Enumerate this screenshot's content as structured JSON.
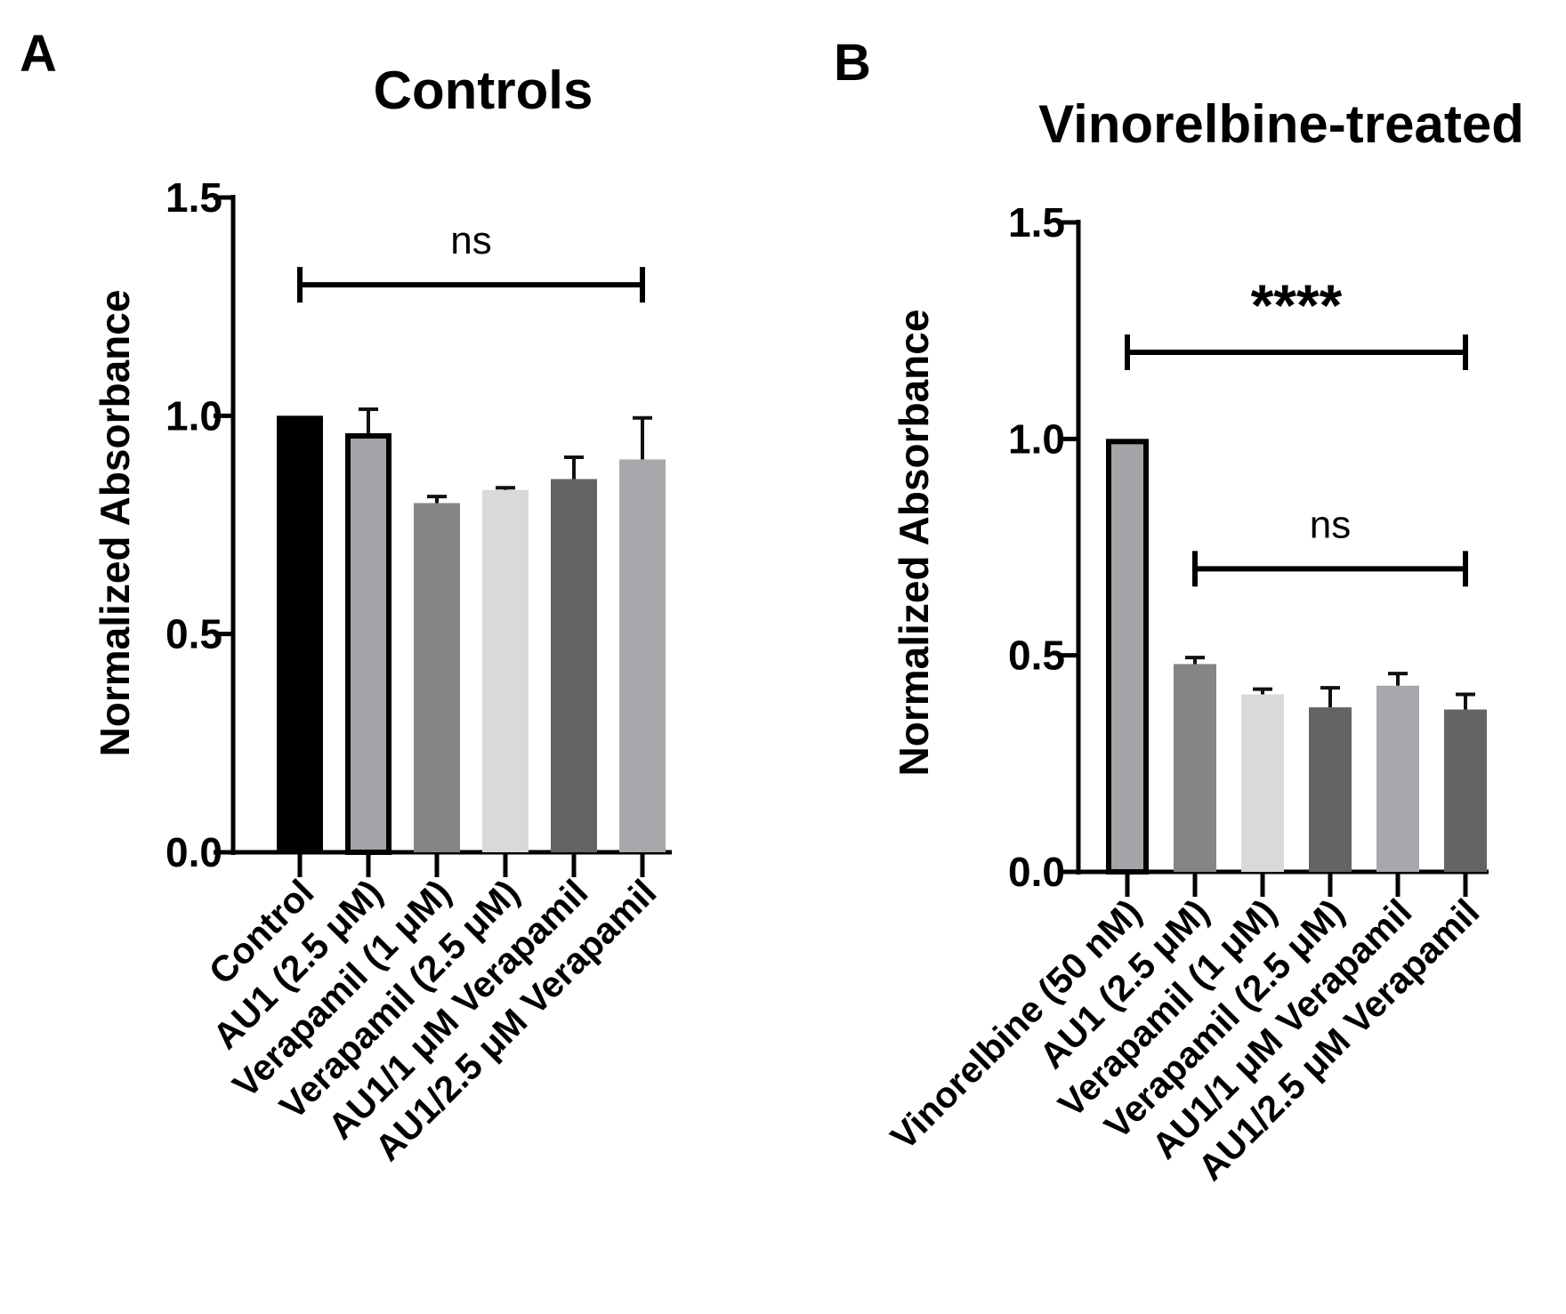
{
  "chart_data": [
    {
      "panel": "A",
      "type": "bar",
      "title": "Controls",
      "xlabel": "",
      "ylabel": "Normalized Absorbance",
      "ylim": [
        0,
        1.5
      ],
      "yticks": [
        "0.0",
        "0.5",
        "1.0",
        "1.5"
      ],
      "categories": [
        "Control",
        "AU1 (2.5 μM)",
        "Verapamil (1 μM)",
        "Verapamil (2.5 μM)",
        "AU1/1 μM Verapamil",
        "AU1/2.5 μM Verapamil"
      ],
      "values": [
        1.0,
        0.96,
        0.8,
        0.83,
        0.855,
        0.9
      ],
      "errors": [
        0.0,
        0.055,
        0.015,
        0.005,
        0.05,
        0.095
      ],
      "colors": [
        "#000000",
        "#a3a3a8",
        "#858585",
        "#d9d9d9",
        "#646464",
        "#a8a8ac"
      ],
      "outlined": [
        false,
        true,
        false,
        false,
        false,
        false
      ],
      "significance": [
        {
          "label": "ns",
          "from": 0,
          "to": 5,
          "y": 1.3
        }
      ]
    },
    {
      "panel": "B",
      "type": "bar",
      "title": "Vinorelbine-treated",
      "xlabel": "",
      "ylabel": "Normalized Absorbance",
      "ylim": [
        0,
        1.5
      ],
      "yticks": [
        "0.0",
        "0.5",
        "1.0",
        "1.5"
      ],
      "categories": [
        "Vinorelbine (50 nM)",
        "AU1 (2.5 μM)",
        "Verapamil (1 μM)",
        "Verapamil (2.5 μM)",
        "AU1/1 μM Verapamil",
        "AU1/2.5 μM Verapamil"
      ],
      "values": [
        1.0,
        0.48,
        0.41,
        0.38,
        0.43,
        0.375
      ],
      "errors": [
        0.0,
        0.015,
        0.012,
        0.045,
        0.028,
        0.035
      ],
      "colors": [
        "#a3a3a8",
        "#858585",
        "#d9d9d9",
        "#646464",
        "#a8a8ac",
        "#646464"
      ],
      "outlined": [
        true,
        false,
        false,
        false,
        false,
        false
      ],
      "significance": [
        {
          "label": "****",
          "from": 0,
          "to": 5,
          "y": 1.2
        },
        {
          "label": "ns",
          "from": 1,
          "to": 5,
          "y": 0.7
        }
      ]
    }
  ]
}
